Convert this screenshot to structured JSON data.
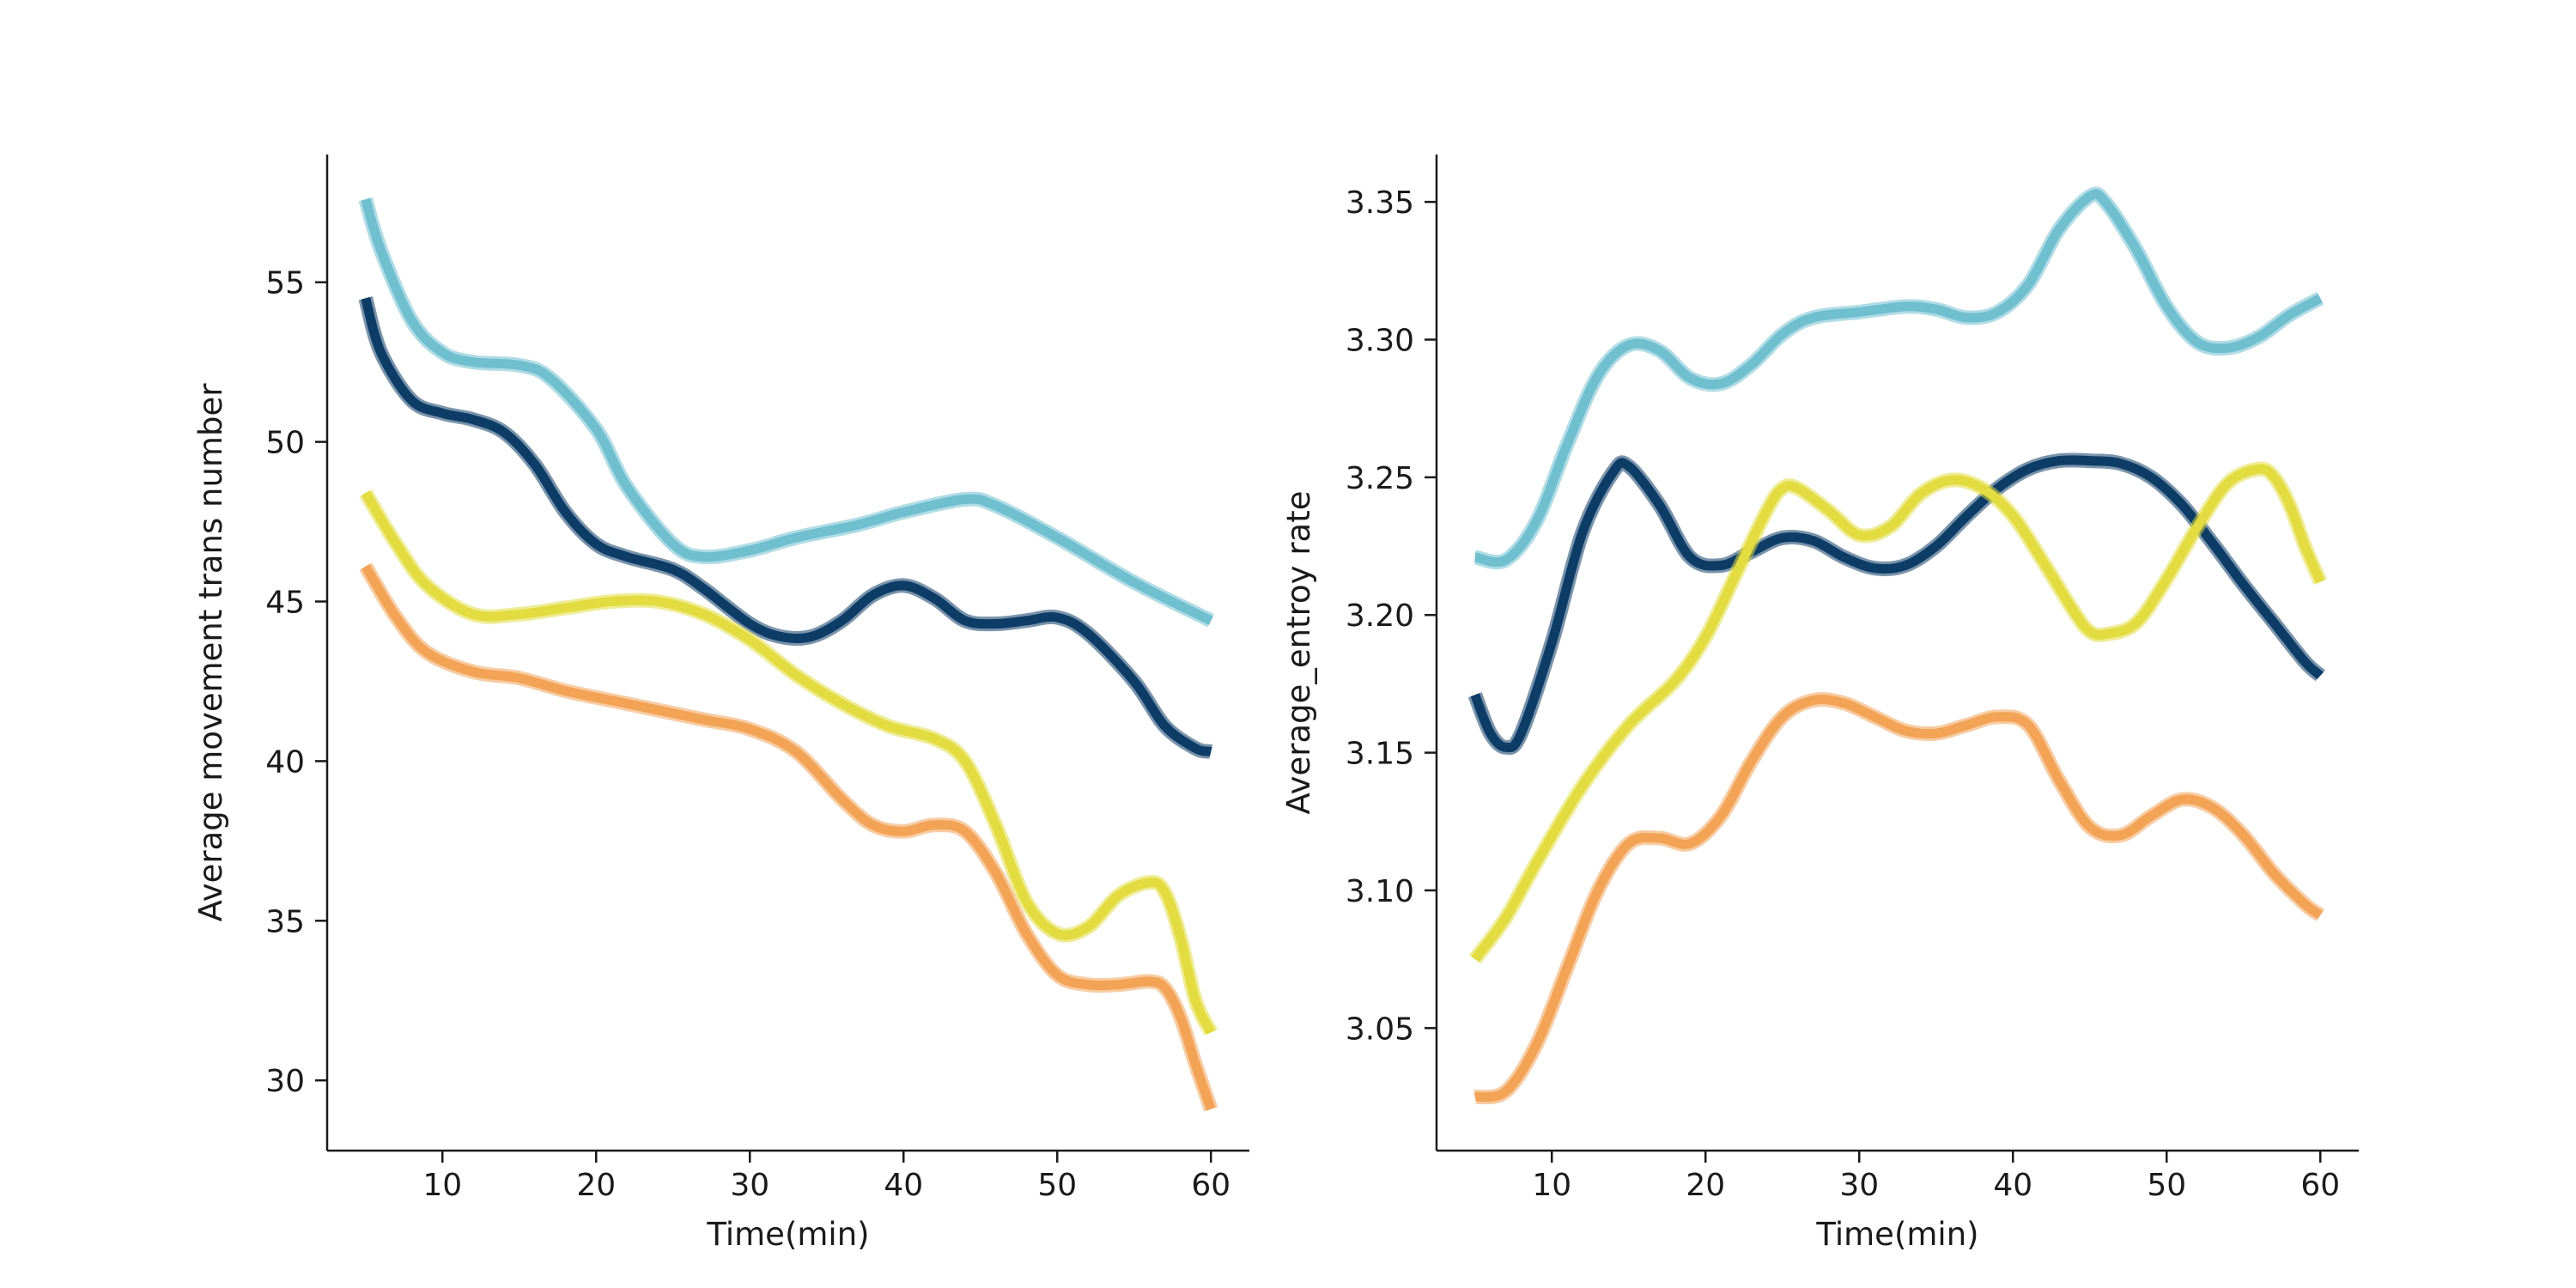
{
  "chart_data": [
    {
      "type": "line",
      "xlabel": "Time(min)",
      "ylabel": "Average movement trans number",
      "xlim": [
        2.5,
        62.5
      ],
      "ylim": [
        27.8,
        59.0
      ],
      "xticks": [
        10,
        20,
        30,
        40,
        50,
        60
      ],
      "yticks": [
        30,
        35,
        40,
        45,
        50,
        55
      ],
      "grid": false,
      "series": [
        {
          "color": "#6fbfcf",
          "points": [
            [
              5,
              57.6
            ],
            [
              6,
              56.0
            ],
            [
              8,
              53.8
            ],
            [
              10,
              52.8
            ],
            [
              12,
              52.5
            ],
            [
              15,
              52.4
            ],
            [
              17,
              52.0
            ],
            [
              20,
              50.4
            ],
            [
              22,
              48.6
            ],
            [
              25,
              46.8
            ],
            [
              27,
              46.4
            ],
            [
              30,
              46.6
            ],
            [
              33,
              47.0
            ],
            [
              37,
              47.4
            ],
            [
              40,
              47.8
            ],
            [
              44,
              48.2
            ],
            [
              46,
              48.0
            ],
            [
              50,
              47.0
            ],
            [
              55,
              45.6
            ],
            [
              60,
              44.4
            ]
          ]
        },
        {
          "color": "#0d3d66",
          "points": [
            [
              5,
              54.5
            ],
            [
              6,
              52.8
            ],
            [
              8,
              51.3
            ],
            [
              10,
              50.9
            ],
            [
              12,
              50.7
            ],
            [
              14,
              50.3
            ],
            [
              16,
              49.3
            ],
            [
              18,
              47.8
            ],
            [
              20,
              46.8
            ],
            [
              22,
              46.4
            ],
            [
              25,
              46.0
            ],
            [
              27,
              45.4
            ],
            [
              30,
              44.3
            ],
            [
              32,
              43.9
            ],
            [
              34,
              43.9
            ],
            [
              36,
              44.4
            ],
            [
              38,
              45.2
            ],
            [
              40,
              45.5
            ],
            [
              42,
              45.1
            ],
            [
              44,
              44.4
            ],
            [
              46,
              44.3
            ],
            [
              48,
              44.4
            ],
            [
              50,
              44.5
            ],
            [
              52,
              44.0
            ],
            [
              55,
              42.5
            ],
            [
              57,
              41.1
            ],
            [
              59,
              40.4
            ],
            [
              60,
              40.3
            ]
          ]
        },
        {
          "color": "#e2dc40",
          "points": [
            [
              5,
              48.4
            ],
            [
              7,
              46.8
            ],
            [
              9,
              45.5
            ],
            [
              12,
              44.6
            ],
            [
              15,
              44.6
            ],
            [
              18,
              44.8
            ],
            [
              21,
              45.0
            ],
            [
              24,
              45.0
            ],
            [
              27,
              44.6
            ],
            [
              30,
              43.8
            ],
            [
              33,
              42.7
            ],
            [
              36,
              41.8
            ],
            [
              39,
              41.1
            ],
            [
              42,
              40.7
            ],
            [
              44,
              40.0
            ],
            [
              46,
              38.0
            ],
            [
              48,
              35.6
            ],
            [
              50,
              34.6
            ],
            [
              52,
              34.8
            ],
            [
              54,
              35.8
            ],
            [
              56,
              36.2
            ],
            [
              57,
              35.9
            ],
            [
              58,
              34.5
            ],
            [
              59,
              32.5
            ],
            [
              60,
              31.5
            ]
          ]
        },
        {
          "color": "#f2a356",
          "points": [
            [
              5,
              46.1
            ],
            [
              7,
              44.5
            ],
            [
              9,
              43.4
            ],
            [
              12,
              42.8
            ],
            [
              15,
              42.6
            ],
            [
              18,
              42.2
            ],
            [
              21,
              41.9
            ],
            [
              24,
              41.6
            ],
            [
              27,
              41.3
            ],
            [
              30,
              41.0
            ],
            [
              33,
              40.3
            ],
            [
              36,
              38.8
            ],
            [
              38,
              38.0
            ],
            [
              40,
              37.8
            ],
            [
              42,
              38.0
            ],
            [
              44,
              37.8
            ],
            [
              46,
              36.5
            ],
            [
              48,
              34.6
            ],
            [
              50,
              33.3
            ],
            [
              52,
              33.0
            ],
            [
              54,
              33.0
            ],
            [
              56,
              33.1
            ],
            [
              57,
              32.9
            ],
            [
              58,
              32.0
            ],
            [
              59,
              30.5
            ],
            [
              60,
              29.1
            ]
          ]
        }
      ]
    },
    {
      "type": "line",
      "xlabel": "Time(min)",
      "ylabel": "Average_entroy rate",
      "xlim": [
        2.5,
        62.5
      ],
      "ylim": [
        3.0055,
        3.3672
      ],
      "xticks": [
        10,
        20,
        30,
        40,
        50,
        60
      ],
      "yticks": [
        3.05,
        3.1,
        3.15,
        3.2,
        3.25,
        3.3,
        3.35
      ],
      "ytick_labels": [
        "3.05",
        "3.10",
        "3.15",
        "3.20",
        "3.25",
        "3.30",
        "3.35"
      ],
      "grid": false,
      "series": [
        {
          "color": "#6fbfcf",
          "points": [
            [
              5,
              3.221
            ],
            [
              7,
              3.22
            ],
            [
              9,
              3.234
            ],
            [
              11,
              3.262
            ],
            [
              13,
              3.287
            ],
            [
              15,
              3.298
            ],
            [
              17,
              3.296
            ],
            [
              19,
              3.286
            ],
            [
              21,
              3.284
            ],
            [
              23,
              3.291
            ],
            [
              25,
              3.302
            ],
            [
              27,
              3.308
            ],
            [
              30,
              3.31
            ],
            [
              33,
              3.312
            ],
            [
              35,
              3.311
            ],
            [
              37,
              3.308
            ],
            [
              39,
              3.31
            ],
            [
              41,
              3.32
            ],
            [
              43,
              3.34
            ],
            [
              45,
              3.352
            ],
            [
              46,
              3.35
            ],
            [
              48,
              3.333
            ],
            [
              50,
              3.312
            ],
            [
              52,
              3.299
            ],
            [
              54,
              3.297
            ],
            [
              56,
              3.301
            ],
            [
              58,
              3.309
            ],
            [
              60,
              3.315
            ]
          ]
        },
        {
          "color": "#0d3d66",
          "points": [
            [
              5,
              3.171
            ],
            [
              6,
              3.157
            ],
            [
              7,
              3.152
            ],
            [
              8,
              3.157
            ],
            [
              10,
              3.19
            ],
            [
              12,
              3.23
            ],
            [
              14,
              3.252
            ],
            [
              15,
              3.254
            ],
            [
              17,
              3.24
            ],
            [
              19,
              3.221
            ],
            [
              21,
              3.218
            ],
            [
              23,
              3.223
            ],
            [
              25,
              3.228
            ],
            [
              27,
              3.227
            ],
            [
              29,
              3.221
            ],
            [
              31,
              3.217
            ],
            [
              33,
              3.218
            ],
            [
              35,
              3.225
            ],
            [
              37,
              3.236
            ],
            [
              39,
              3.246
            ],
            [
              41,
              3.253
            ],
            [
              43,
              3.256
            ],
            [
              45,
              3.256
            ],
            [
              47,
              3.255
            ],
            [
              49,
              3.25
            ],
            [
              51,
              3.24
            ],
            [
              53,
              3.226
            ],
            [
              55,
              3.211
            ],
            [
              57,
              3.197
            ],
            [
              59,
              3.183
            ],
            [
              60,
              3.178
            ]
          ]
        },
        {
          "color": "#e2dc40",
          "points": [
            [
              5,
              3.075
            ],
            [
              7,
              3.09
            ],
            [
              9,
              3.11
            ],
            [
              12,
              3.138
            ],
            [
              15,
              3.16
            ],
            [
              18,
              3.176
            ],
            [
              20,
              3.192
            ],
            [
              22,
              3.215
            ],
            [
              24,
              3.238
            ],
            [
              25,
              3.246
            ],
            [
              26,
              3.246
            ],
            [
              28,
              3.238
            ],
            [
              30,
              3.229
            ],
            [
              32,
              3.232
            ],
            [
              34,
              3.244
            ],
            [
              36,
              3.249
            ],
            [
              38,
              3.246
            ],
            [
              40,
              3.236
            ],
            [
              42,
              3.219
            ],
            [
              44,
              3.201
            ],
            [
              45,
              3.194
            ],
            [
              46,
              3.193
            ],
            [
              48,
              3.197
            ],
            [
              50,
              3.213
            ],
            [
              52,
              3.232
            ],
            [
              54,
              3.248
            ],
            [
              56,
              3.253
            ],
            [
              57,
              3.25
            ],
            [
              58,
              3.24
            ],
            [
              59,
              3.225
            ],
            [
              60,
              3.212
            ]
          ]
        },
        {
          "color": "#f2a356",
          "points": [
            [
              5,
              3.025
            ],
            [
              7,
              3.027
            ],
            [
              9,
              3.044
            ],
            [
              11,
              3.072
            ],
            [
              13,
              3.1
            ],
            [
              15,
              3.117
            ],
            [
              17,
              3.119
            ],
            [
              19,
              3.117
            ],
            [
              21,
              3.127
            ],
            [
              23,
              3.147
            ],
            [
              25,
              3.163
            ],
            [
              27,
              3.169
            ],
            [
              29,
              3.168
            ],
            [
              31,
              3.163
            ],
            [
              33,
              3.158
            ],
            [
              35,
              3.157
            ],
            [
              37,
              3.16
            ],
            [
              39,
              3.163
            ],
            [
              41,
              3.16
            ],
            [
              43,
              3.14
            ],
            [
              45,
              3.123
            ],
            [
              47,
              3.12
            ],
            [
              49,
              3.127
            ],
            [
              51,
              3.133
            ],
            [
              53,
              3.13
            ],
            [
              55,
              3.12
            ],
            [
              57,
              3.106
            ],
            [
              59,
              3.095
            ],
            [
              60,
              3.091
            ]
          ]
        }
      ]
    }
  ]
}
